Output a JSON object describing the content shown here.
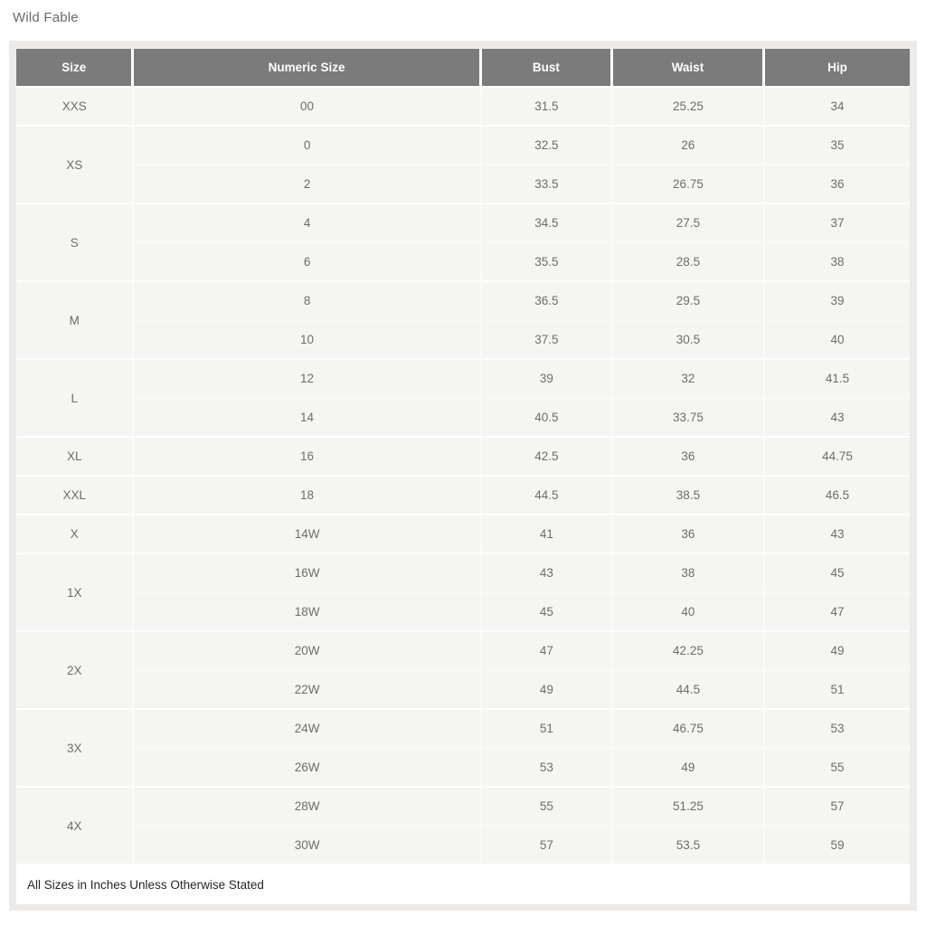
{
  "page": {
    "brand": "Wild Fable",
    "footnote": "All Sizes in Inches Unless Otherwise Stated"
  },
  "table": {
    "columns": [
      "Size",
      "Numeric Size",
      "Bust",
      "Waist",
      "Hip"
    ],
    "groups": [
      {
        "size": "XXS",
        "rows": [
          [
            "00",
            "31.5",
            "25.25",
            "34"
          ]
        ]
      },
      {
        "size": "XS",
        "rows": [
          [
            "0",
            "32.5",
            "26",
            "35"
          ],
          [
            "2",
            "33.5",
            "26.75",
            "36"
          ]
        ]
      },
      {
        "size": "S",
        "rows": [
          [
            "4",
            "34.5",
            "27.5",
            "37"
          ],
          [
            "6",
            "35.5",
            "28.5",
            "38"
          ]
        ]
      },
      {
        "size": "M",
        "rows": [
          [
            "8",
            "36.5",
            "29.5",
            "39"
          ],
          [
            "10",
            "37.5",
            "30.5",
            "40"
          ]
        ]
      },
      {
        "size": "L",
        "rows": [
          [
            "12",
            "39",
            "32",
            "41.5"
          ],
          [
            "14",
            "40.5",
            "33.75",
            "43"
          ]
        ]
      },
      {
        "size": "XL",
        "rows": [
          [
            "16",
            "42.5",
            "36",
            "44.75"
          ]
        ]
      },
      {
        "size": "XXL",
        "rows": [
          [
            "18",
            "44.5",
            "38.5",
            "46.5"
          ]
        ]
      },
      {
        "size": "X",
        "rows": [
          [
            "14W",
            "41",
            "36",
            "43"
          ]
        ]
      },
      {
        "size": "1X",
        "rows": [
          [
            "16W",
            "43",
            "38",
            "45"
          ],
          [
            "18W",
            "45",
            "40",
            "47"
          ]
        ]
      },
      {
        "size": "2X",
        "rows": [
          [
            "20W",
            "47",
            "42.25",
            "49"
          ],
          [
            "22W",
            "49",
            "44.5",
            "51"
          ]
        ]
      },
      {
        "size": "3X",
        "rows": [
          [
            "24W",
            "51",
            "46.75",
            "53"
          ],
          [
            "26W",
            "53",
            "49",
            "55"
          ]
        ]
      },
      {
        "size": "4X",
        "rows": [
          [
            "28W",
            "55",
            "51.25",
            "57"
          ],
          [
            "30W",
            "57",
            "53.5",
            "59"
          ]
        ]
      }
    ]
  },
  "colors": {
    "header_bg": "#7b7b7b",
    "header_text": "#ffffff",
    "row_bg": "#f5f5f3",
    "panel_bg": "#ecebe9",
    "cell_text": "#6d6d6d",
    "footnote_text": "#262626"
  }
}
